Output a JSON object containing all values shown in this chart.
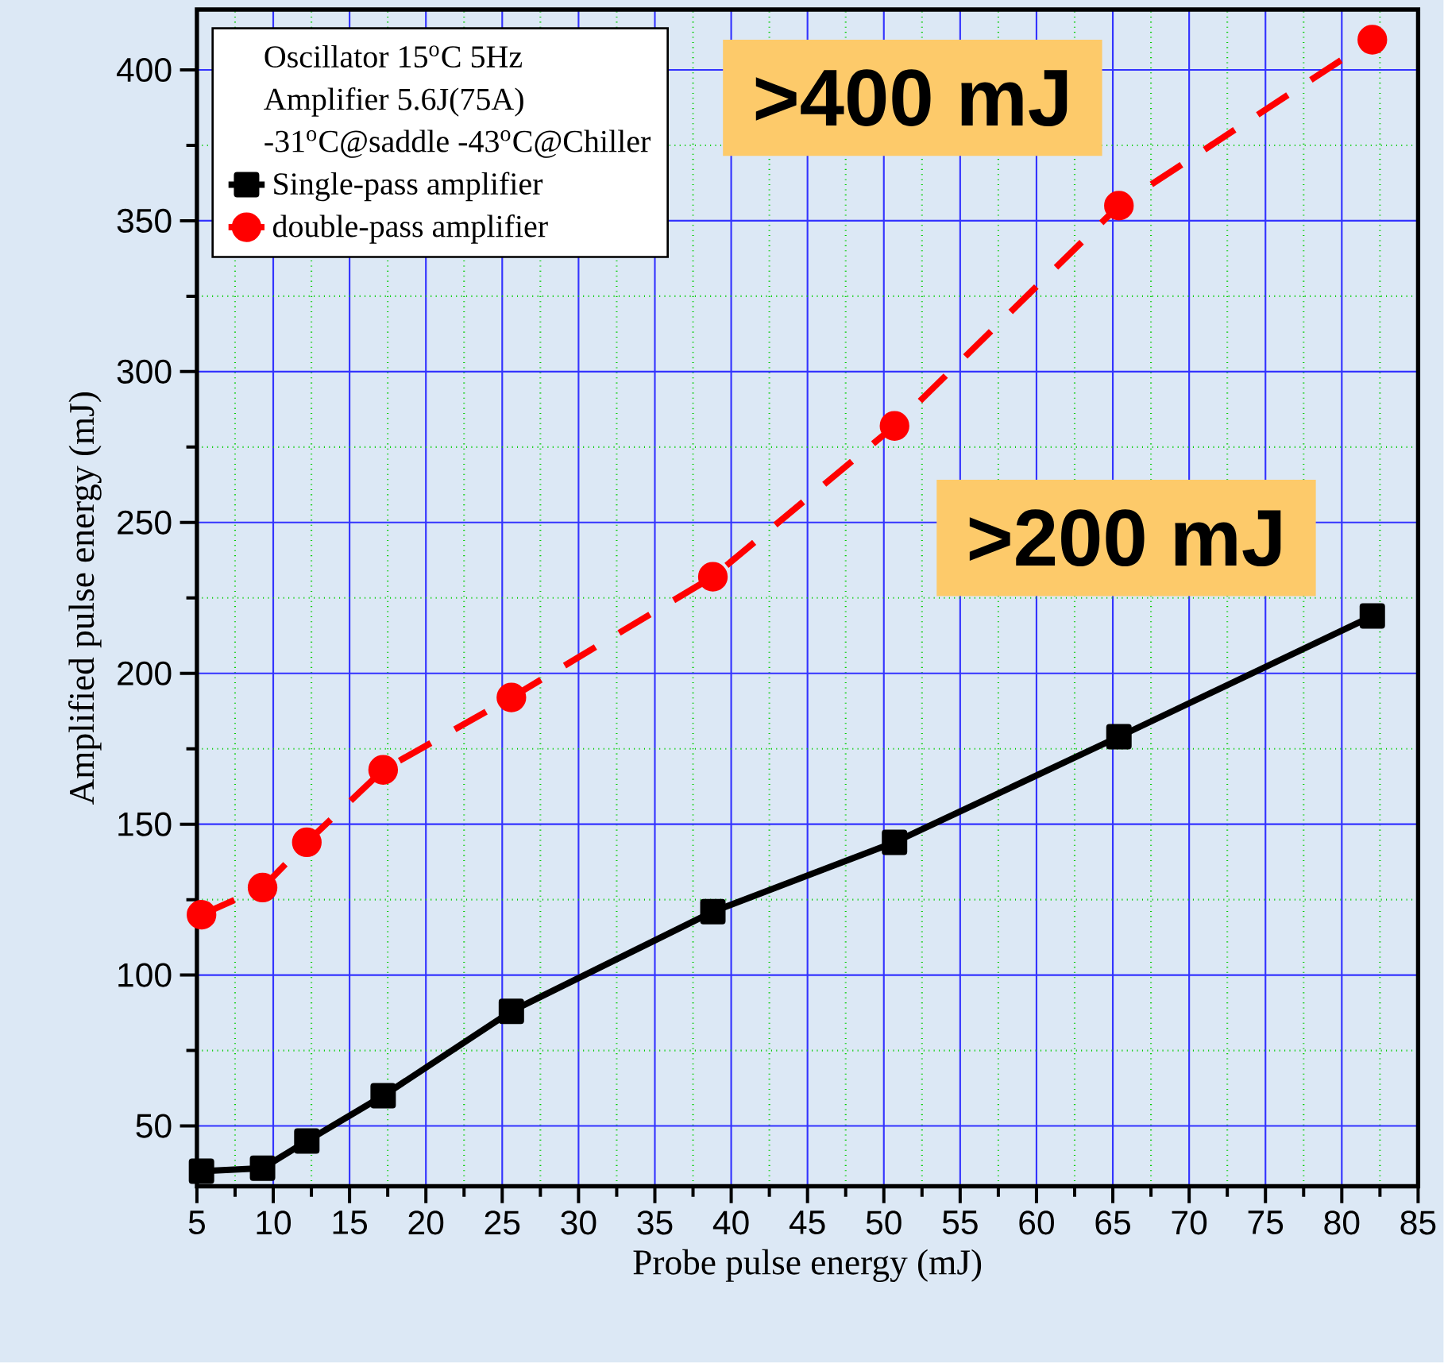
{
  "chart_data": {
    "type": "line",
    "xlabel": "Probe pulse energy (mJ)",
    "ylabel": "Amplified pulse energy (mJ)",
    "xlim": [
      5,
      85
    ],
    "ylim": [
      30,
      420
    ],
    "xticks": [
      5,
      10,
      15,
      20,
      25,
      30,
      35,
      40,
      45,
      50,
      55,
      60,
      65,
      70,
      75,
      80,
      85
    ],
    "yticks": [
      50,
      100,
      150,
      200,
      250,
      300,
      350,
      400
    ],
    "grid": true,
    "legend": "top left",
    "annotations": [
      "Oscillator 15$^{o}$C 5Hz",
      "Amplifier 5.6J(75A)",
      "-31$^{o}$C@saddle -43$^{o}$C@Chiller",
      ">400 mJ",
      ">200 mJ"
    ],
    "series": [
      {
        "name": "Single-pass amplifier",
        "color": "#000000",
        "marker": "square",
        "line_style": "solid",
        "x": [
          5.3,
          9.3,
          12.2,
          17.2,
          25.6,
          38.8,
          50.7,
          65.4,
          82
        ],
        "values": [
          35,
          36,
          45,
          60,
          88,
          121,
          144,
          179,
          219
        ]
      },
      {
        "name": "double-pass amplifier",
        "color": "#ff0000",
        "marker": "circle",
        "line_style": "dashed",
        "x": [
          5.3,
          9.3,
          12.2,
          17.2,
          25.6,
          38.8,
          50.7,
          65.4,
          82
        ],
        "values": [
          120,
          129,
          144,
          168,
          192,
          232,
          282,
          355,
          410
        ]
      }
    ]
  }
}
